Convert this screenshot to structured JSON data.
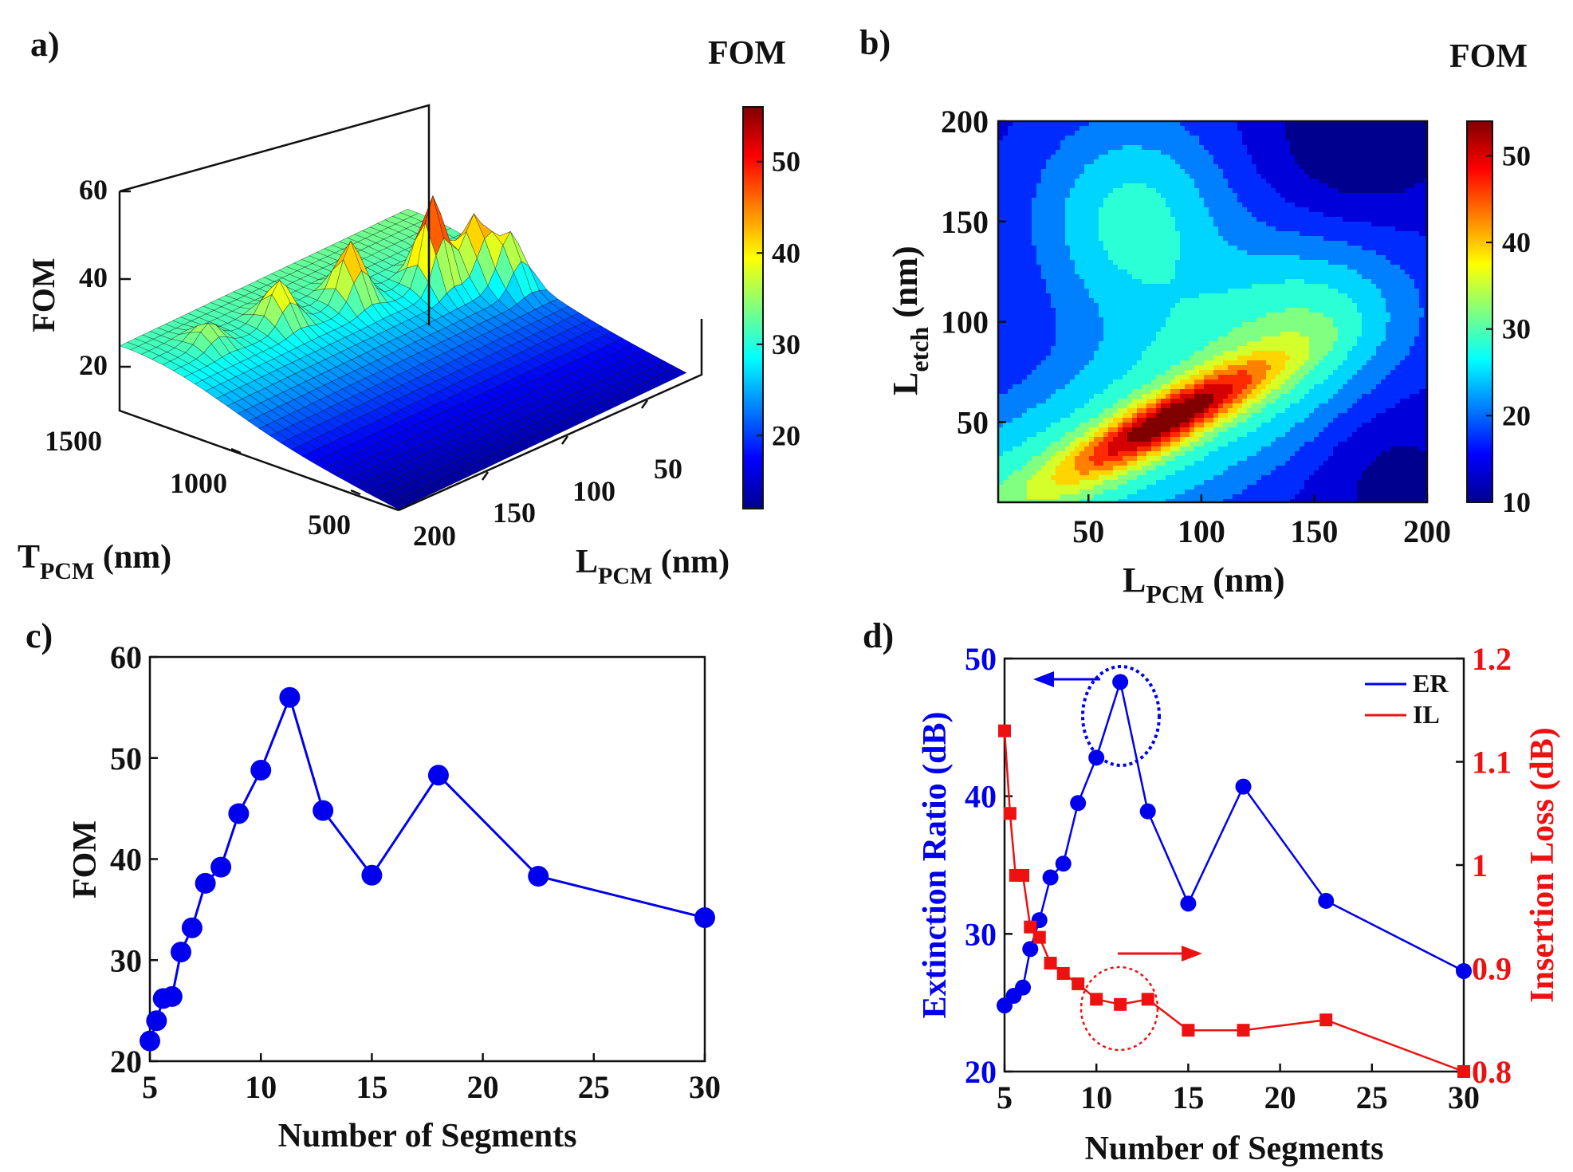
{
  "colormap": [
    "#00008f",
    "#0000ff",
    "#0080ff",
    "#00ffff",
    "#80ff80",
    "#ffff00",
    "#ff8000",
    "#ff0000",
    "#800000"
  ],
  "colors": {
    "er": "#0000ee",
    "il": "#ee1111",
    "axis": "#111111"
  },
  "chart_data": [
    {
      "panel_label": "a)",
      "type": "surface3d",
      "colorbar_title": "FOM",
      "colorbar_ticks": [
        "20",
        "30",
        "40",
        "50"
      ],
      "colorbar_range": [
        12,
        56
      ],
      "zlabel": "FOM",
      "zticks": [
        "20",
        "40",
        "60"
      ],
      "x_axis_label_main": "T",
      "x_axis_label_sub": "PCM",
      "x_axis_label_unit": " (nm)",
      "x_ticks": [
        "1500",
        "1000",
        "500"
      ],
      "y_axis_label_main": "L",
      "y_axis_label_sub": "PCM",
      "y_axis_label_unit": " (nm)",
      "y_ticks": [
        "50",
        "100",
        "150",
        "200"
      ],
      "peaks": [
        {
          "t": 1100,
          "l": 50,
          "fom": 56
        },
        {
          "t": 1050,
          "l": 30,
          "fom": 48
        },
        {
          "t": 950,
          "l": 20,
          "fom": 45
        },
        {
          "t": 1200,
          "l": 90,
          "fom": 47
        },
        {
          "t": 1250,
          "l": 130,
          "fom": 42
        },
        {
          "t": 1300,
          "l": 170,
          "fom": 36
        }
      ]
    },
    {
      "panel_label": "b)",
      "type": "heatmap",
      "colorbar_title": "FOM",
      "colorbar_ticks": [
        "10",
        "20",
        "30",
        "40",
        "50"
      ],
      "colorbar_range": [
        10,
        54
      ],
      "xlabel_main": "L",
      "xlabel_sub": "PCM",
      "xlabel_unit": " (nm)",
      "ylabel_main": "L",
      "ylabel_sub": "etch",
      "ylabel_unit": " (nm)",
      "xlim": [
        10,
        200
      ],
      "ylim": [
        10,
        200
      ],
      "xticks": [
        50,
        100,
        150,
        200
      ],
      "yticks": [
        50,
        100,
        150,
        200
      ],
      "peak_ridge": [
        [
          10,
          10
        ],
        [
          50,
          30
        ],
        [
          80,
          50
        ],
        [
          100,
          60
        ]
      ],
      "max_value": 54,
      "min_value": 10
    },
    {
      "panel_label": "c)",
      "type": "line",
      "xlabel": "Number of Segments",
      "ylabel": "FOM",
      "xlim": [
        5,
        30
      ],
      "ylim": [
        20,
        60
      ],
      "xticks": [
        5,
        10,
        15,
        20,
        25,
        30
      ],
      "yticks": [
        20,
        30,
        40,
        50,
        60
      ],
      "x": [
        5,
        5.3,
        5.6,
        6.0,
        6.4,
        6.9,
        7.5,
        8.2,
        9.0,
        10.0,
        11.3,
        12.8,
        15,
        18,
        22.5,
        30
      ],
      "y": [
        22,
        24,
        26.2,
        26.4,
        30.8,
        33.2,
        37.6,
        39.2,
        44.5,
        48.8,
        56,
        44.8,
        38.4,
        48.3,
        38.3,
        34.2
      ]
    },
    {
      "panel_label": "d)",
      "type": "line",
      "xlabel": "Number of Segments",
      "ylabel_left": "Extinction Ratio (dB)",
      "ylabel_right": "Insertion Loss (dB)",
      "xlim": [
        5,
        30
      ],
      "ylim_left": [
        20,
        50
      ],
      "ylim_right": [
        0.8,
        1.2
      ],
      "xticks": [
        5,
        10,
        15,
        20,
        25,
        30
      ],
      "yticks_left": [
        20,
        30,
        40,
        50
      ],
      "yticks_right": [
        "0.8",
        "0.9",
        "1",
        "1.1",
        "1.2"
      ],
      "legend": [
        "ER",
        "IL"
      ],
      "legend_position": "top-right",
      "series": [
        {
          "name": "ER",
          "axis": "left",
          "marker": "circle",
          "x": [
            5,
            5.5,
            6.0,
            6.4,
            6.9,
            7.5,
            8.2,
            9.0,
            10.0,
            11.3,
            12.8,
            15,
            18,
            22.5,
            30
          ],
          "values": [
            24.8,
            25.5,
            26.1,
            28.9,
            31.0,
            34.1,
            35.1,
            39.5,
            42.8,
            48.3,
            38.9,
            32.2,
            40.7,
            32.4,
            27.3
          ]
        },
        {
          "name": "IL",
          "axis": "right",
          "marker": "square",
          "x": [
            5,
            5.3,
            5.6,
            6.0,
            6.4,
            6.9,
            7.5,
            8.2,
            9.0,
            10.0,
            11.3,
            12.8,
            15,
            18,
            22.5,
            30
          ],
          "values": [
            1.13,
            1.05,
            0.99,
            0.99,
            0.94,
            0.93,
            0.905,
            0.895,
            0.885,
            0.87,
            0.865,
            0.87,
            0.84,
            0.84,
            0.85,
            0.8
          ]
        }
      ]
    }
  ]
}
